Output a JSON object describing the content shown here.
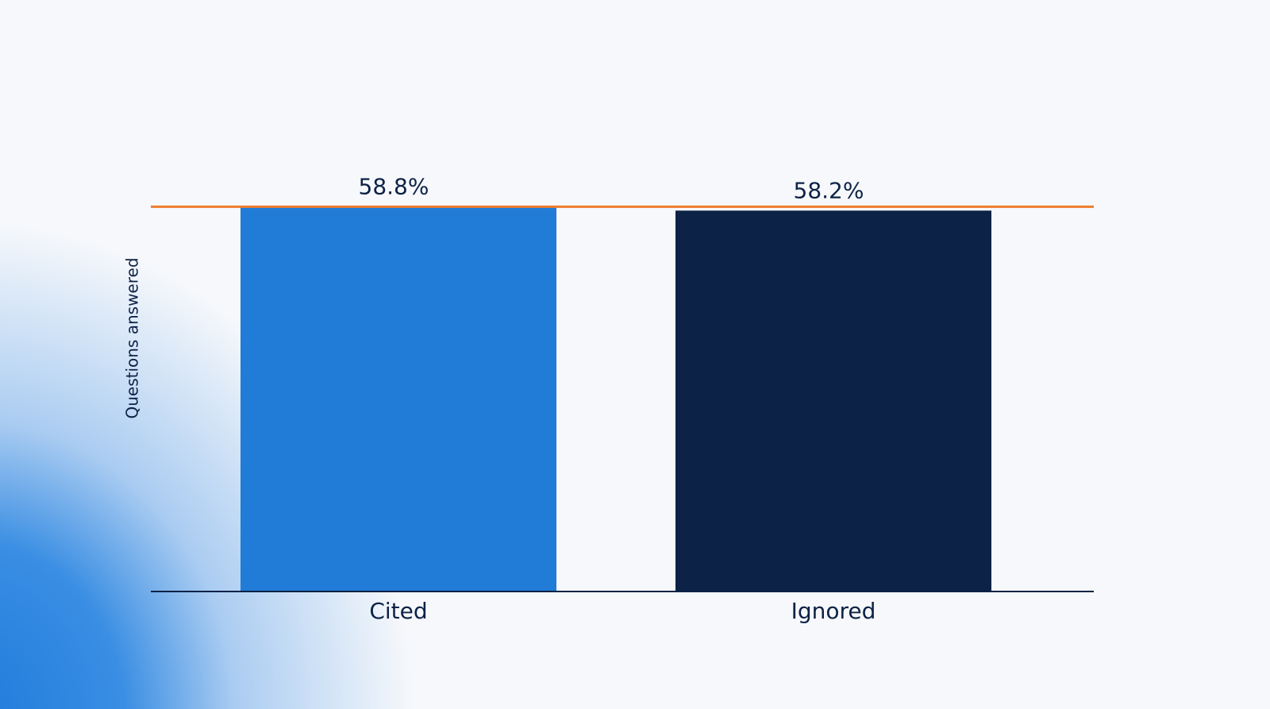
{
  "chart_data": {
    "type": "bar",
    "y_label": "Questions answered",
    "categories": [
      "Cited",
      "Ignored"
    ],
    "values": [
      58.8,
      58.2
    ],
    "value_labels": [
      "58.8%",
      "58.2%"
    ],
    "colors": [
      "#217cd8",
      "#0c2246"
    ],
    "ylim": [
      0,
      70
    ],
    "reference_line": 58.8,
    "reference_color": "#ef7d2c",
    "axis_color": "#0c2246"
  }
}
